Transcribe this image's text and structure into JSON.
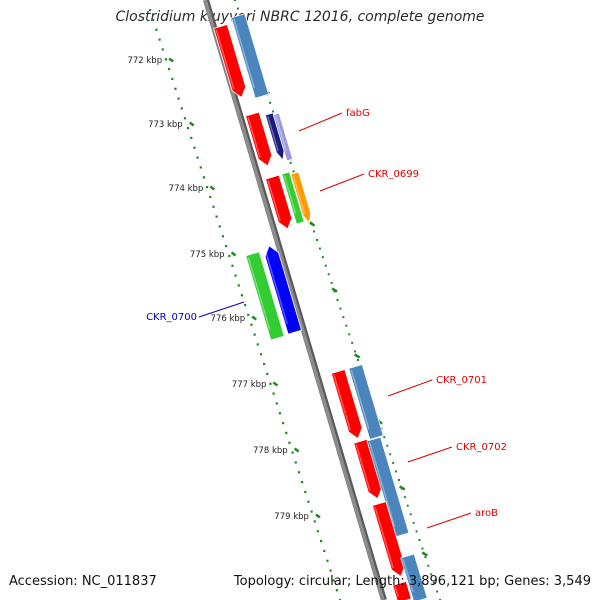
{
  "title": "Clostridium kluyveri NBRC 12016, complete genome",
  "footer": {
    "accession": "Accession: NC_011837",
    "stats": "Topology: circular; Length: 3,896,121 bp; Genes: 3,549"
  },
  "colors": {
    "backbone": "#8c8c8c",
    "tick": "#1d8a1d",
    "label_red": "#dd0000",
    "label_blue": "#0000cc",
    "gene_red": "#ff0000",
    "gene_steelblue": "#4a86bd",
    "gene_blue": "#0000ff",
    "gene_green": "#33cc33",
    "gene_orange": "#ff9900",
    "gene_navy": "#1a1a80",
    "gene_lavender": "#9999dd"
  },
  "ruler": {
    "ticks": [
      {
        "label": "772 kbp"
      },
      {
        "label": "773 kbp"
      },
      {
        "label": "774 kbp"
      },
      {
        "label": "775 kbp"
      },
      {
        "label": "776 kbp"
      },
      {
        "label": "777 kbp"
      },
      {
        "label": "778 kbp"
      },
      {
        "label": "779 kbp"
      }
    ]
  },
  "gene_labels": [
    {
      "text": "fabG",
      "color": "red"
    },
    {
      "text": "CKR_0699",
      "color": "red"
    },
    {
      "text": "CKR_0700",
      "color": "blue"
    },
    {
      "text": "CKR_0701",
      "color": "red"
    },
    {
      "text": "CKR_0702",
      "color": "red"
    },
    {
      "text": "aroB",
      "color": "red"
    }
  ]
}
